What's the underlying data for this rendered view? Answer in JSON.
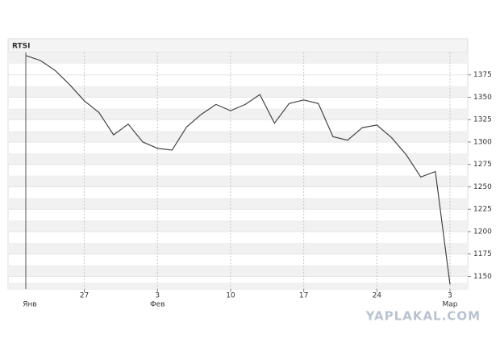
{
  "chart_data": {
    "type": "line",
    "title": "RTSI",
    "categories": [
      null,
      null,
      null,
      null,
      "27",
      null,
      null,
      null,
      null,
      "3",
      null,
      null,
      null,
      null,
      "10",
      null,
      null,
      null,
      null,
      "17",
      null,
      null,
      null,
      null,
      "24",
      null,
      null,
      null,
      null,
      "3"
    ],
    "months": [
      "Янв",
      null,
      null,
      null,
      null,
      null,
      null,
      null,
      null,
      "Фев",
      null,
      null,
      null,
      null,
      null,
      null,
      null,
      null,
      null,
      null,
      null,
      null,
      null,
      null,
      null,
      null,
      null,
      null,
      null,
      "Мар"
    ],
    "values": [
      1396.6,
      1391,
      1380,
      1364,
      1346,
      1333,
      1308,
      1320,
      1300,
      1293,
      1291,
      1317,
      1331,
      1342,
      1335,
      1342,
      1353,
      1321,
      1343,
      1347,
      1343,
      1306,
      1302,
      1316,
      1319,
      1305,
      1286,
      1261,
      1267,
      1141
    ],
    "color": "#444444",
    "ylim": [
      1136,
      1400
    ],
    "yticks": [
      1150,
      1175,
      1200,
      1225,
      1250,
      1275,
      1300,
      1325,
      1350,
      1375
    ],
    "grid": true,
    "watermark": "YAPLAKAL.COM"
  }
}
